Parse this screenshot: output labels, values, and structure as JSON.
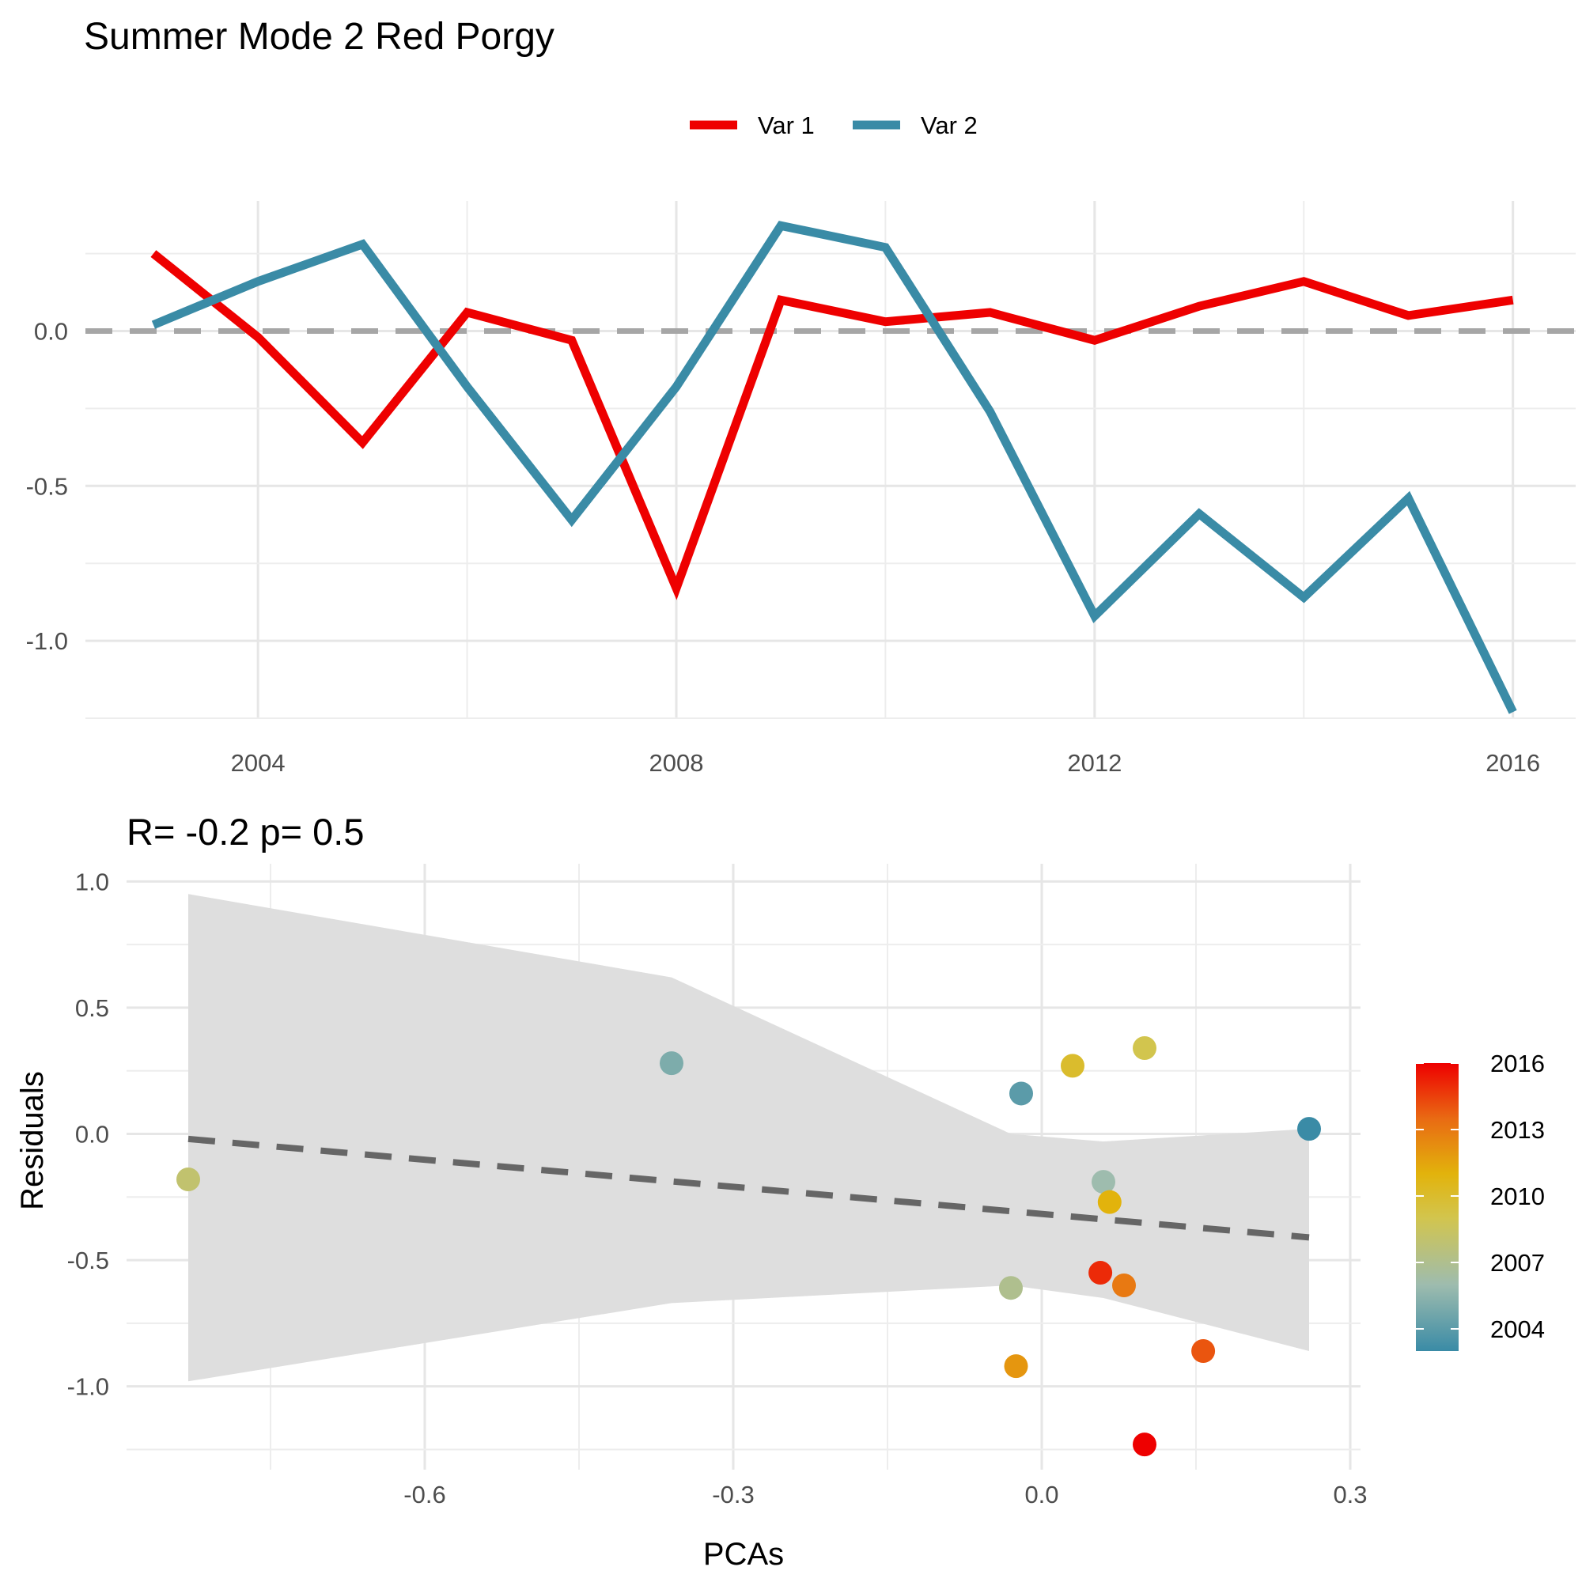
{
  "chart_data": [
    {
      "type": "line",
      "title": "Summer Mode 2  Red Porgy",
      "xlabel": "",
      "ylabel": "",
      "legend_position": "top",
      "x": [
        2003,
        2004,
        2005,
        2006,
        2007,
        2008,
        2009,
        2010,
        2011,
        2012,
        2013,
        2014,
        2015,
        2016
      ],
      "x_ticks": [
        2004,
        2008,
        2012,
        2016
      ],
      "xlim": [
        2002.35,
        2016.6
      ],
      "y_ticks": [
        0.0,
        -0.5,
        -1.0
      ],
      "y_tick_labels": [
        "0.0",
        "-0.5",
        "-1.0"
      ],
      "ylim": [
        -1.25,
        0.42
      ],
      "reference_line": 0,
      "series": [
        {
          "name": "Var 1",
          "color": "#ee0000",
          "values": [
            0.25,
            -0.02,
            -0.36,
            0.06,
            -0.03,
            -0.83,
            0.1,
            0.03,
            0.06,
            -0.03,
            0.08,
            0.16,
            0.05,
            0.1
          ]
        },
        {
          "name": "Var 2",
          "color": "#3a8ba6",
          "values": [
            0.02,
            0.16,
            0.28,
            -0.18,
            -0.61,
            -0.18,
            0.34,
            0.27,
            -0.26,
            -0.92,
            -0.59,
            -0.86,
            -0.54,
            -1.23
          ]
        }
      ]
    },
    {
      "type": "scatter",
      "title": "R= -0.2  p= 0.5",
      "xlabel": "PCAs",
      "ylabel": "Residuals",
      "x_ticks": [
        -0.6,
        -0.3,
        0.0,
        0.3
      ],
      "x_tick_labels": [
        "-0.6",
        "-0.3",
        "0.0",
        "0.3"
      ],
      "xlim": [
        -0.89,
        0.31
      ],
      "y_ticks": [
        1.0,
        0.5,
        0.0,
        -0.5,
        -1.0
      ],
      "y_tick_labels": [
        "1.0",
        "0.5",
        "0.0",
        "-0.5",
        "-1.0"
      ],
      "ylim": [
        -1.33,
        1.07
      ],
      "fit_line": {
        "x": [
          -0.83,
          0.26
        ],
        "y": [
          -0.02,
          -0.41
        ],
        "style": "dashed",
        "color": "#666666"
      },
      "confidence_band": {
        "x": [
          -0.83,
          -0.36,
          -0.03,
          0.06,
          0.26
        ],
        "upper": [
          0.95,
          0.62,
          0.0,
          -0.03,
          0.02
        ],
        "lower": [
          -0.98,
          -0.67,
          -0.6,
          -0.65,
          -0.86
        ],
        "color": "#dedede"
      },
      "color_scale": {
        "label_values": [
          2016,
          2013,
          2010,
          2007,
          2004
        ],
        "stops": [
          {
            "year": 2003,
            "color": "#3a8ba6"
          },
          {
            "year": 2006,
            "color": "#9ebcae"
          },
          {
            "year": 2009,
            "color": "#d2c54e"
          },
          {
            "year": 2011,
            "color": "#e2b30c"
          },
          {
            "year": 2013.5,
            "color": "#e96a13"
          },
          {
            "year": 2016,
            "color": "#ee0000"
          }
        ]
      },
      "points": [
        {
          "year": 2003,
          "x": 0.26,
          "y": 0.02
        },
        {
          "year": 2004,
          "x": -0.02,
          "y": 0.16
        },
        {
          "year": 2005,
          "x": -0.36,
          "y": 0.28
        },
        {
          "year": 2006,
          "x": 0.06,
          "y": -0.19
        },
        {
          "year": 2007,
          "x": -0.03,
          "y": -0.61
        },
        {
          "year": 2008,
          "x": -0.83,
          "y": -0.18
        },
        {
          "year": 2009,
          "x": 0.1,
          "y": 0.34
        },
        {
          "year": 2010,
          "x": 0.03,
          "y": 0.27
        },
        {
          "year": 2011,
          "x": 0.066,
          "y": -0.27
        },
        {
          "year": 2012,
          "x": -0.025,
          "y": -0.92
        },
        {
          "year": 2013,
          "x": 0.08,
          "y": -0.6
        },
        {
          "year": 2014,
          "x": 0.157,
          "y": -0.86
        },
        {
          "year": 2015,
          "x": 0.057,
          "y": -0.55
        },
        {
          "year": 2016,
          "x": 0.1,
          "y": -1.23
        }
      ]
    }
  ]
}
